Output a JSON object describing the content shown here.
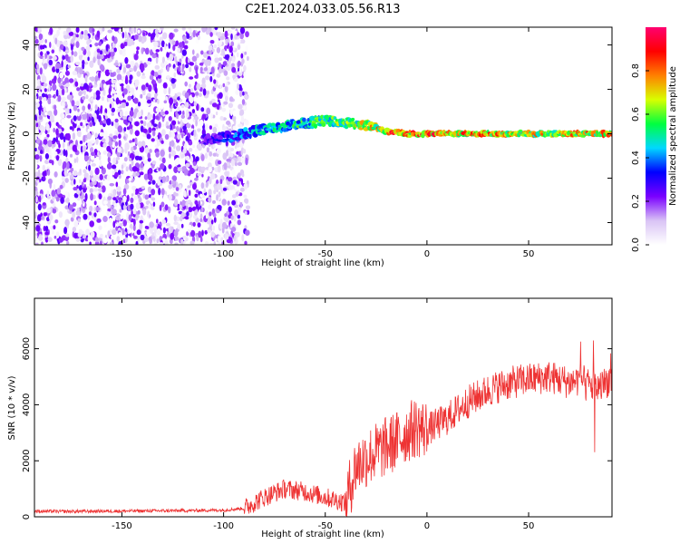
{
  "title": "C2E1.2024.033.05.56.R13",
  "chart_data": [
    {
      "type": "heatmap",
      "xlabel": "Height of straight line (km)",
      "ylabel": "Frequency (Hz)",
      "xlim": [
        -193,
        91
      ],
      "ylim": [
        -50,
        48
      ],
      "xticks": [
        -150,
        -100,
        -50,
        0,
        50
      ],
      "xtick_labels": [
        "-150",
        "-100",
        "-50",
        "0",
        "50"
      ],
      "yticks": [
        -40,
        -20,
        0,
        20,
        40
      ],
      "ytick_labels": [
        "-40",
        "-20",
        "0",
        "20",
        "40"
      ],
      "colorbar": {
        "label": "Normalized spectral amplitude",
        "range": [
          0,
          1
        ],
        "ticks": [
          0.0,
          0.2,
          0.4,
          0.6,
          0.8
        ],
        "tick_labels": [
          "0.0",
          "0.2",
          "0.4",
          "0.6",
          "0.8"
        ],
        "colormap": [
          "#ffffff",
          "#d9c3f5",
          "#7a00ff",
          "#0000ff",
          "#00d8ff",
          "#00ff40",
          "#d8ff00",
          "#ff8000",
          "#ff0000",
          "#ff0070"
        ]
      },
      "signal_track": [
        {
          "x": -110,
          "freq": -3,
          "amp": 0.25
        },
        {
          "x": -95,
          "freq": -1,
          "amp": 0.4
        },
        {
          "x": -80,
          "freq": 2,
          "amp": 0.5
        },
        {
          "x": -65,
          "freq": 4,
          "amp": 0.55
        },
        {
          "x": -50,
          "freq": 6,
          "amp": 0.6
        },
        {
          "x": -40,
          "freq": 5,
          "amp": 0.65
        },
        {
          "x": -30,
          "freq": 4,
          "amp": 0.7
        },
        {
          "x": -20,
          "freq": 1,
          "amp": 0.85
        },
        {
          "x": -10,
          "freq": 0,
          "amp": 0.9
        },
        {
          "x": 0,
          "freq": 0,
          "amp": 0.9
        },
        {
          "x": 50,
          "freq": 0,
          "amp": 0.75
        },
        {
          "x": 91,
          "freq": 0,
          "amp": 0.8
        }
      ],
      "noise_region_xmax": -88
    },
    {
      "type": "line",
      "xlabel": "Height of straight line (km)",
      "ylabel": "SNR (10 * v/v)",
      "xlim": [
        -193,
        91
      ],
      "ylim": [
        0,
        7800
      ],
      "xticks": [
        -150,
        -100,
        -50,
        0,
        50
      ],
      "xtick_labels": [
        "-150",
        "-100",
        "-50",
        "0",
        "50"
      ],
      "yticks": [
        0,
        2000,
        4000,
        6000
      ],
      "ytick_labels": [
        "0",
        "2000",
        "4000",
        "6000"
      ],
      "color": "#ee3333",
      "series": [
        {
          "x": [
            -193,
            -180,
            -160,
            -140,
            -120,
            -100,
            -90,
            -80,
            -70,
            -60,
            -50,
            -45,
            -40,
            -35,
            -30,
            -25,
            -20,
            -15,
            -10,
            -5,
            0,
            5,
            10,
            15,
            20,
            25,
            30,
            35,
            40,
            45,
            50,
            55,
            60,
            65,
            70,
            75,
            80,
            85,
            91
          ],
          "values": [
            200,
            190,
            200,
            210,
            220,
            240,
            300,
            700,
            1000,
            900,
            700,
            600,
            500,
            1800,
            2100,
            2300,
            2500,
            2700,
            3000,
            3200,
            3100,
            3300,
            3500,
            3800,
            4100,
            4300,
            4500,
            4650,
            4750,
            4850,
            4900,
            4950,
            5000,
            4900,
            4800,
            4900,
            4700,
            4600,
            5000
          ]
        }
      ]
    }
  ]
}
